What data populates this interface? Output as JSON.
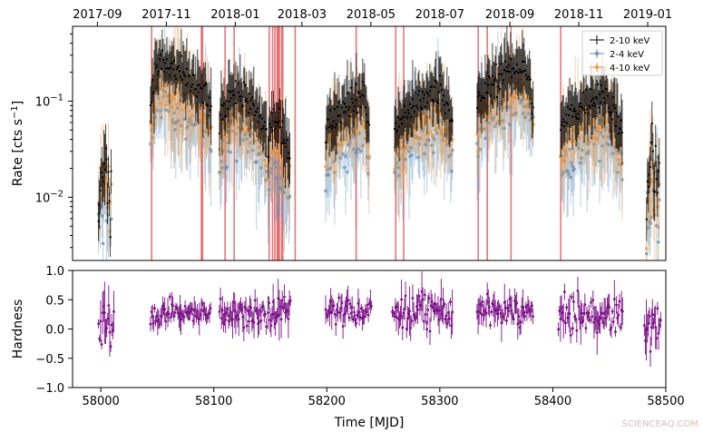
{
  "chart_data": [
    {
      "type": "scatter",
      "panel": "rate",
      "ylabel_main": "Rate [cts s",
      "ylabel_sup": "−1",
      "ylabel_end": "]",
      "yscale": "log",
      "ylim": [
        0.0022,
        0.6
      ],
      "xlim": [
        57975,
        58500
      ],
      "y_ticks": [
        {
          "value": 0.01,
          "base": "10",
          "exp": "−2"
        },
        {
          "value": 0.1,
          "base": "10",
          "exp": "−1"
        }
      ],
      "top_axis_ticks": [
        {
          "mjd": 57997,
          "label": "2017-09"
        },
        {
          "mjd": 58058,
          "label": "2017-11"
        },
        {
          "mjd": 58119,
          "label": "2018-01"
        },
        {
          "mjd": 58178,
          "label": "2018-03"
        },
        {
          "mjd": 58239,
          "label": "2018-05"
        },
        {
          "mjd": 58300,
          "label": "2018-07"
        },
        {
          "mjd": 58362,
          "label": "2018-09"
        },
        {
          "mjd": 58423,
          "label": "2018-11"
        },
        {
          "mjd": 58484,
          "label": "2019-01"
        }
      ],
      "vertical_lines_mjd": [
        58045,
        58089,
        58090,
        58110,
        58118,
        58149,
        58152,
        58154,
        58156,
        58157,
        58158,
        58160,
        58161,
        58172,
        58226,
        58261,
        58268,
        58334,
        58342,
        58363,
        58407
      ],
      "legend": {
        "placement": "top-right",
        "entries": [
          {
            "label": "2-10 keV",
            "color": "#000000"
          },
          {
            "label": "2-4 keV",
            "color": "#5b8fbe"
          },
          {
            "label": "4-10 keV",
            "color": "#f0953a"
          }
        ]
      },
      "segments": [
        {
          "start": 57998,
          "end": 58010,
          "peak_mjd": 58003,
          "peak": 0.025
        },
        {
          "start": 58044,
          "end": 58098,
          "peak_mjd": 58052,
          "peak": 0.24
        },
        {
          "start": 58105,
          "end": 58147,
          "peak_mjd": 58118,
          "peak": 0.13
        },
        {
          "start": 58148,
          "end": 58168,
          "peak_mjd": 58151,
          "peak": 0.065
        },
        {
          "start": 58199,
          "end": 58238,
          "peak_mjd": 58232,
          "peak": 0.12
        },
        {
          "start": 58260,
          "end": 58312,
          "peak_mjd": 58300,
          "peak": 0.13
        },
        {
          "start": 58333,
          "end": 58383,
          "peak_mjd": 58373,
          "peak": 0.24
        },
        {
          "start": 58407,
          "end": 58462,
          "peak_mjd": 58444,
          "peak": 0.12
        },
        {
          "start": 58483,
          "end": 58495,
          "peak_mjd": 58487,
          "peak": 0.025
        }
      ],
      "series": [
        {
          "name": "2-10 keV",
          "color": "#000000",
          "factor": 1.0,
          "scatter": 0.08
        },
        {
          "name": "2-4 keV",
          "color": "#5b8fbe",
          "factor": 0.42,
          "scatter": 0.14
        },
        {
          "name": "4-10 keV",
          "color": "#f0953a",
          "factor": 0.6,
          "scatter": 0.11
        }
      ]
    },
    {
      "type": "scatter",
      "panel": "hardness",
      "ylabel": "Hardness",
      "xlabel": "Time [MJD]",
      "ylim": [
        -1.0,
        1.0
      ],
      "xlim": [
        57975,
        58500
      ],
      "y_ticks": [
        1.0,
        0.5,
        0.0,
        -0.5,
        -1.0
      ],
      "y_tick_labels": [
        "1.0",
        "0.5",
        "0.0",
        "−0.5",
        "−1.0"
      ],
      "x_ticks": [
        58000,
        58100,
        58200,
        58300,
        58400,
        58500
      ],
      "x_tick_labels": [
        "58000",
        "58100",
        "58200",
        "58300",
        "58400",
        "58500"
      ],
      "color": "#7b0f87",
      "segments": [
        {
          "start": 57998,
          "end": 58012,
          "level": 0.05,
          "spread": 0.45
        },
        {
          "start": 58044,
          "end": 58098,
          "level": 0.27,
          "spread": 0.22
        },
        {
          "start": 58105,
          "end": 58147,
          "level": 0.27,
          "spread": 0.25
        },
        {
          "start": 58148,
          "end": 58168,
          "level": 0.25,
          "spread": 0.35
        },
        {
          "start": 58199,
          "end": 58240,
          "level": 0.3,
          "spread": 0.25
        },
        {
          "start": 58258,
          "end": 58312,
          "level": 0.3,
          "spread": 0.3
        },
        {
          "start": 58333,
          "end": 58383,
          "level": 0.3,
          "spread": 0.25
        },
        {
          "start": 58405,
          "end": 58462,
          "level": 0.22,
          "spread": 0.3
        },
        {
          "start": 58481,
          "end": 58496,
          "level": 0.05,
          "spread": 0.45
        }
      ]
    }
  ],
  "watermark": "SCIENCEAQ.COM"
}
